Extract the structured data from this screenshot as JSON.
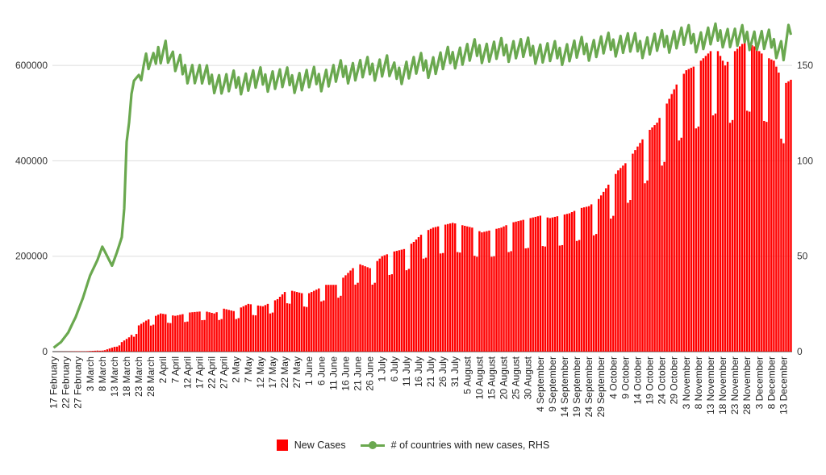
{
  "chart_data": {
    "type": "bar+line",
    "title": "",
    "colors": {
      "bars": "#ff0000",
      "line": "#6aa84f",
      "grid": "#dddddd"
    },
    "grid": true,
    "legend_position": "bottom",
    "y_left": {
      "range": [
        0,
        700000
      ],
      "ticks": [
        "0",
        "200000",
        "400000",
        "600000"
      ]
    },
    "y_right": {
      "range": [
        0,
        175
      ],
      "ticks": [
        "0",
        "50",
        "100",
        "150"
      ]
    },
    "x_tick_labels": [
      "17 February",
      "22 February",
      "27 February",
      "3 March",
      "8 March",
      "13 March",
      "18 March",
      "23 March",
      "28 March",
      "2 April",
      "7 April",
      "12 April",
      "17 April",
      "22 April",
      "27 April",
      "2 May",
      "7 May",
      "12 May",
      "17 May",
      "22 May",
      "27 May",
      "1 June",
      "6 June",
      "11 June",
      "16 June",
      "21 June",
      "26 June",
      "1 July",
      "6 July",
      "11 July",
      "16 July",
      "21 July",
      "26 July",
      "31 July",
      "5 August",
      "10 August",
      "15 August",
      "20 August",
      "25 August",
      "30 August",
      "4 September",
      "9 September",
      "14 September",
      "19 September",
      "24 September",
      "29 September",
      "4 October",
      "9 October",
      "14 October",
      "19 October",
      "24 October",
      "29 October",
      "3 November",
      "8 November",
      "13 November",
      "18 November",
      "23 November",
      "28 November",
      "3 December",
      "8 December",
      "13 December"
    ],
    "x_start": "2020-02-17",
    "x_end": "2020-12-16",
    "bars_anchors": [
      [
        0,
        0
      ],
      [
        14,
        1000
      ],
      [
        21,
        3000
      ],
      [
        25,
        10000
      ],
      [
        28,
        20000
      ],
      [
        31,
        30000
      ],
      [
        33,
        40000
      ],
      [
        35,
        55000
      ],
      [
        38,
        65000
      ],
      [
        44,
        80000
      ],
      [
        50,
        75000
      ],
      [
        56,
        82000
      ],
      [
        62,
        85000
      ],
      [
        66,
        80000
      ],
      [
        70,
        90000
      ],
      [
        74,
        85000
      ],
      [
        80,
        100000
      ],
      [
        86,
        95000
      ],
      [
        92,
        110000
      ],
      [
        96,
        130000
      ],
      [
        104,
        120000
      ],
      [
        108,
        130000
      ],
      [
        112,
        140000
      ],
      [
        116,
        140000
      ],
      [
        120,
        160000
      ],
      [
        125,
        185000
      ],
      [
        130,
        175000
      ],
      [
        135,
        200000
      ],
      [
        140,
        210000
      ],
      [
        144,
        215000
      ],
      [
        148,
        230000
      ],
      [
        152,
        250000
      ],
      [
        156,
        260000
      ],
      [
        160,
        265000
      ],
      [
        164,
        270000
      ],
      [
        168,
        265000
      ],
      [
        172,
        260000
      ],
      [
        176,
        250000
      ],
      [
        180,
        255000
      ],
      [
        184,
        260000
      ],
      [
        188,
        270000
      ],
      [
        192,
        275000
      ],
      [
        196,
        280000
      ],
      [
        200,
        285000
      ],
      [
        204,
        280000
      ],
      [
        208,
        285000
      ],
      [
        212,
        290000
      ],
      [
        216,
        300000
      ],
      [
        220,
        305000
      ],
      [
        224,
        320000
      ],
      [
        228,
        350000
      ],
      [
        232,
        380000
      ],
      [
        236,
        400000
      ],
      [
        240,
        430000
      ],
      [
        244,
        460000
      ],
      [
        248,
        480000
      ],
      [
        252,
        520000
      ],
      [
        256,
        560000
      ],
      [
        260,
        590000
      ],
      [
        264,
        600000
      ],
      [
        268,
        620000
      ],
      [
        272,
        640000
      ],
      [
        276,
        600000
      ],
      [
        280,
        630000
      ],
      [
        284,
        650000
      ],
      [
        288,
        640000
      ],
      [
        292,
        620000
      ],
      [
        296,
        610000
      ],
      [
        300,
        560000
      ],
      [
        303,
        570000
      ]
    ],
    "bars_weekly_dip": 0.78,
    "line_anchors": [
      [
        0,
        2
      ],
      [
        3,
        5
      ],
      [
        6,
        10
      ],
      [
        9,
        18
      ],
      [
        12,
        28
      ],
      [
        15,
        40
      ],
      [
        18,
        48
      ],
      [
        20,
        55
      ],
      [
        22,
        50
      ],
      [
        24,
        45
      ],
      [
        26,
        52
      ],
      [
        28,
        60
      ],
      [
        29,
        75
      ],
      [
        30,
        110
      ],
      [
        31,
        120
      ],
      [
        32,
        135
      ],
      [
        33,
        142
      ],
      [
        35,
        145
      ],
      [
        37,
        150
      ],
      [
        39,
        152
      ],
      [
        41,
        150
      ],
      [
        43,
        157
      ],
      [
        46,
        159
      ],
      [
        49,
        152
      ],
      [
        53,
        148
      ],
      [
        60,
        145
      ],
      [
        70,
        140
      ],
      [
        80,
        142
      ],
      [
        90,
        143
      ],
      [
        100,
        142
      ],
      [
        110,
        143
      ],
      [
        120,
        147
      ],
      [
        130,
        148
      ],
      [
        137,
        150
      ],
      [
        140,
        145
      ],
      [
        145,
        148
      ],
      [
        150,
        150
      ],
      [
        155,
        150
      ],
      [
        160,
        152
      ],
      [
        165,
        155
      ],
      [
        170,
        156
      ],
      [
        175,
        158
      ],
      [
        180,
        157
      ],
      [
        185,
        158
      ],
      [
        190,
        159
      ],
      [
        195,
        158
      ],
      [
        200,
        157
      ],
      [
        205,
        156
      ],
      [
        210,
        157
      ],
      [
        215,
        158
      ],
      [
        220,
        159
      ],
      [
        225,
        160
      ],
      [
        230,
        161
      ],
      [
        235,
        162
      ],
      [
        240,
        160
      ],
      [
        245,
        161
      ],
      [
        250,
        162
      ],
      [
        255,
        164
      ],
      [
        260,
        165
      ],
      [
        265,
        163
      ],
      [
        270,
        165
      ],
      [
        275,
        166
      ],
      [
        280,
        164
      ],
      [
        285,
        165
      ],
      [
        290,
        163
      ],
      [
        295,
        162
      ],
      [
        300,
        158
      ],
      [
        303,
        170
      ]
    ],
    "series": [
      {
        "name": "New Cases",
        "type": "bar",
        "axis": "left"
      },
      {
        "name": "# of countries with new cases, RHS",
        "type": "line",
        "axis": "right"
      }
    ]
  }
}
